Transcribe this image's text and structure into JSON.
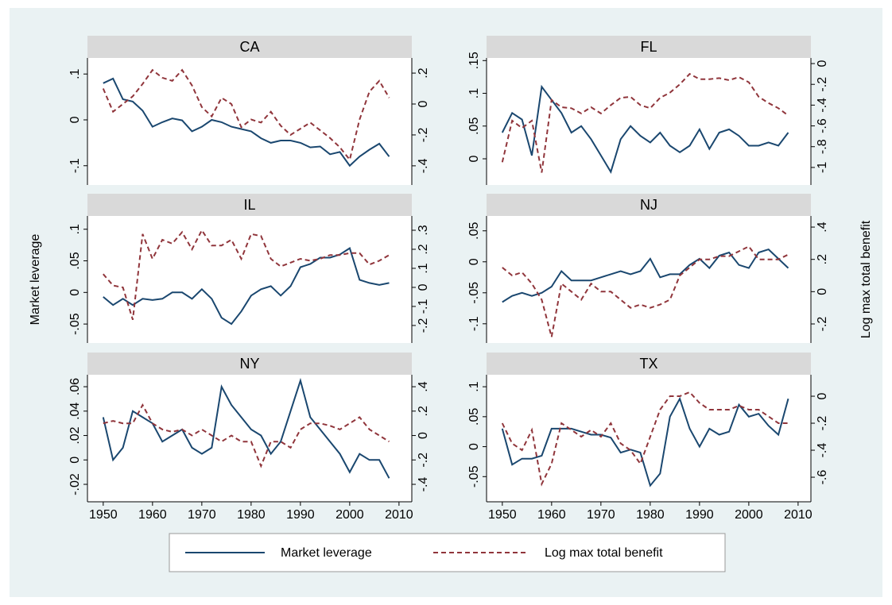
{
  "y_axis_label": "Market leverage",
  "y2_axis_label": "Log max total benefit",
  "chart_data": [
    {
      "type": "line",
      "title": "CA",
      "x": [
        1950,
        1952,
        1954,
        1956,
        1958,
        1960,
        1962,
        1964,
        1966,
        1968,
        1970,
        1972,
        1974,
        1976,
        1978,
        1980,
        1982,
        1984,
        1986,
        1988,
        1990,
        1992,
        1994,
        1996,
        1998,
        2000,
        2002,
        2004,
        2006,
        2008
      ],
      "xlim": [
        1946.8,
        2012.6
      ],
      "ylim": [
        -0.142,
        0.135
      ],
      "yticks": [
        {
          "value": -0.1,
          "label": "-.1"
        },
        0,
        {
          "value": 0.1,
          "label": ".1"
        }
      ],
      "y2lim": [
        -0.524,
        0.298
      ],
      "y2ticks": [
        {
          "value": -0.4,
          "label": "-.4"
        },
        {
          "value": -0.2,
          "label": "-.2"
        },
        0,
        {
          "value": 0.2,
          "label": ".2"
        }
      ],
      "series": [
        {
          "name": "Market leverage",
          "color": "#1a476f",
          "axis": "y",
          "values": [
            0.08,
            0.09,
            0.045,
            0.04,
            0.02,
            -0.015,
            -0.005,
            0.003,
            -0.001,
            -0.025,
            -0.015,
            0.0,
            -0.005,
            -0.015,
            -0.02,
            -0.025,
            -0.04,
            -0.05,
            -0.045,
            -0.045,
            -0.05,
            -0.06,
            -0.058,
            -0.075,
            -0.07,
            -0.1,
            -0.08,
            -0.065,
            -0.052,
            -0.08
          ]
        },
        {
          "name": "Log max total benefit",
          "color": "#90353b",
          "axis": "y2",
          "dash": true,
          "values": [
            0.1,
            -0.05,
            0.0,
            0.05,
            0.13,
            0.22,
            0.17,
            0.15,
            0.22,
            0.12,
            -0.02,
            -0.08,
            0.04,
            0.0,
            -0.15,
            -0.1,
            -0.12,
            -0.05,
            -0.14,
            -0.2,
            -0.16,
            -0.12,
            -0.17,
            -0.22,
            -0.28,
            -0.36,
            -0.1,
            0.08,
            0.15,
            0.04
          ]
        }
      ]
    },
    {
      "type": "line",
      "title": "FL",
      "x": [
        1950,
        1952,
        1954,
        1956,
        1958,
        1960,
        1962,
        1964,
        1966,
        1968,
        1970,
        1972,
        1974,
        1976,
        1978,
        1980,
        1982,
        1984,
        1986,
        1988,
        1990,
        1992,
        1994,
        1996,
        1998,
        2000,
        2002,
        2004,
        2006,
        2008
      ],
      "xlim": [
        1946.8,
        2012.6
      ],
      "ylim": [
        -0.04,
        0.154
      ],
      "yticks": [
        0,
        {
          "value": 0.05,
          "label": ".05"
        },
        {
          "value": 0.1,
          "label": ".1"
        },
        {
          "value": 0.15,
          "label": ".15"
        }
      ],
      "y2lim": [
        -1.169,
        0.054
      ],
      "y2ticks": [
        -1,
        {
          "value": -0.8,
          "label": "-.8"
        },
        {
          "value": -0.6,
          "label": "-.6"
        },
        {
          "value": -0.4,
          "label": "-.4"
        },
        {
          "value": -0.2,
          "label": "-.2"
        },
        0
      ],
      "series": [
        {
          "name": "Market leverage",
          "color": "#1a476f",
          "axis": "y",
          "values": [
            0.04,
            0.07,
            0.06,
            0.005,
            0.11,
            0.09,
            0.07,
            0.04,
            0.05,
            0.03,
            0.005,
            -0.02,
            0.03,
            0.05,
            0.035,
            0.025,
            0.04,
            0.02,
            0.01,
            0.02,
            0.045,
            0.015,
            0.04,
            0.045,
            0.035,
            0.02,
            0.02,
            0.025,
            0.02,
            0.04
          ]
        },
        {
          "name": "Log max total benefit",
          "color": "#90353b",
          "axis": "y2",
          "dash": true,
          "values": [
            -0.95,
            -0.55,
            -0.62,
            -0.55,
            -1.05,
            -0.35,
            -0.42,
            -0.43,
            -0.48,
            -0.42,
            -0.48,
            -0.4,
            -0.33,
            -0.32,
            -0.4,
            -0.43,
            -0.33,
            -0.28,
            -0.2,
            -0.1,
            -0.15,
            -0.15,
            -0.14,
            -0.16,
            -0.13,
            -0.18,
            -0.32,
            -0.38,
            -0.43,
            -0.5
          ]
        }
      ]
    },
    {
      "type": "line",
      "title": "IL",
      "x": [
        1950,
        1952,
        1954,
        1956,
        1958,
        1960,
        1962,
        1964,
        1966,
        1968,
        1970,
        1972,
        1974,
        1976,
        1978,
        1980,
        1982,
        1984,
        1986,
        1988,
        1990,
        1992,
        1994,
        1996,
        1998,
        2000,
        2002,
        2004,
        2006,
        2008
      ],
      "xlim": [
        1946.8,
        2012.6
      ],
      "ylim": [
        -0.08,
        0.121
      ],
      "yticks": [
        {
          "value": -0.05,
          "label": "-.05"
        },
        0,
        {
          "value": 0.05,
          "label": ".05"
        },
        {
          "value": 0.1,
          "label": ".1"
        }
      ],
      "y2lim": [
        -0.292,
        0.375
      ],
      "y2ticks": [
        {
          "value": -0.2,
          "label": "-.2"
        },
        {
          "value": -0.1,
          "label": "-.1"
        },
        0,
        {
          "value": 0.1,
          "label": ".1"
        },
        {
          "value": 0.2,
          "label": ".2"
        },
        {
          "value": 0.3,
          "label": ".3"
        }
      ],
      "series": [
        {
          "name": "Market leverage",
          "color": "#1a476f",
          "axis": "y",
          "values": [
            -0.007,
            -0.02,
            -0.01,
            -0.02,
            -0.01,
            -0.012,
            -0.01,
            0.0,
            0.0,
            -0.01,
            0.005,
            -0.01,
            -0.04,
            -0.05,
            -0.03,
            -0.005,
            0.005,
            0.01,
            -0.005,
            0.01,
            0.04,
            0.045,
            0.055,
            0.055,
            0.06,
            0.07,
            0.02,
            0.015,
            0.012,
            0.015
          ]
        },
        {
          "name": "Log max total benefit",
          "color": "#90353b",
          "axis": "y2",
          "dash": true,
          "values": [
            0.07,
            0.01,
            0.0,
            -0.17,
            0.28,
            0.15,
            0.25,
            0.23,
            0.29,
            0.2,
            0.3,
            0.22,
            0.22,
            0.25,
            0.15,
            0.28,
            0.27,
            0.15,
            0.11,
            0.13,
            0.15,
            0.14,
            0.15,
            0.17,
            0.17,
            0.18,
            0.18,
            0.12,
            0.14,
            0.17
          ]
        }
      ]
    },
    {
      "type": "line",
      "title": "NJ",
      "x": [
        1950,
        1952,
        1954,
        1956,
        1958,
        1960,
        1962,
        1964,
        1966,
        1968,
        1970,
        1972,
        1974,
        1976,
        1978,
        1980,
        1982,
        1984,
        1986,
        1988,
        1990,
        1992,
        1994,
        1996,
        1998,
        2000,
        2002,
        2004,
        2006,
        2008
      ],
      "xlim": [
        1946.8,
        2012.6
      ],
      "ylim": [
        -0.131,
        0.074
      ],
      "yticks": [
        {
          "value": -0.1,
          "label": "-.1"
        },
        {
          "value": -0.05,
          "label": "-.05"
        },
        0,
        {
          "value": 0.05,
          "label": ".05"
        }
      ],
      "y2lim": [
        -0.318,
        0.469
      ],
      "y2ticks": [
        {
          "value": -0.2,
          "label": "-.2"
        },
        0,
        {
          "value": 0.2,
          "label": ".2"
        },
        {
          "value": 0.4,
          "label": ".4"
        }
      ],
      "series": [
        {
          "name": "Market leverage",
          "color": "#1a476f",
          "axis": "y",
          "values": [
            -0.065,
            -0.055,
            -0.05,
            -0.055,
            -0.05,
            -0.04,
            -0.015,
            -0.03,
            -0.03,
            -0.03,
            -0.025,
            -0.02,
            -0.015,
            -0.02,
            -0.015,
            0.005,
            -0.025,
            -0.02,
            -0.02,
            -0.005,
            0.005,
            -0.01,
            0.01,
            0.015,
            -0.005,
            -0.01,
            0.015,
            0.02,
            0.005,
            -0.01
          ]
        },
        {
          "name": "Log max total benefit",
          "color": "#90353b",
          "axis": "y2",
          "dash": true,
          "values": [
            0.15,
            0.1,
            0.12,
            0.05,
            -0.05,
            -0.28,
            0.05,
            0.0,
            -0.05,
            0.05,
            0.0,
            0.0,
            -0.05,
            -0.1,
            -0.08,
            -0.1,
            -0.08,
            -0.05,
            0.1,
            0.15,
            0.2,
            0.2,
            0.22,
            0.22,
            0.25,
            0.28,
            0.2,
            0.2,
            0.2,
            0.23
          ]
        }
      ]
    },
    {
      "type": "line",
      "title": "NY",
      "x": [
        1950,
        1952,
        1954,
        1956,
        1958,
        1960,
        1962,
        1964,
        1966,
        1968,
        1970,
        1972,
        1974,
        1976,
        1978,
        1980,
        1982,
        1984,
        1986,
        1988,
        1990,
        1992,
        1994,
        1996,
        1998,
        2000,
        2002,
        2004,
        2006,
        2008
      ],
      "xlim": [
        1946.8,
        2012.6
      ],
      "xticks": [
        1950,
        1960,
        1970,
        1980,
        1990,
        2000,
        2010
      ],
      "ylim": [
        -0.0343,
        0.0698
      ],
      "yticks": [
        {
          "value": -0.02,
          "label": "-.02"
        },
        0,
        {
          "value": 0.02,
          "label": ".02"
        },
        {
          "value": 0.04,
          "label": ".04"
        },
        {
          "value": 0.06,
          "label": ".06"
        }
      ],
      "y2lim": [
        -0.543,
        0.498
      ],
      "y2ticks": [
        {
          "value": -0.4,
          "label": "-.4"
        },
        {
          "value": -0.2,
          "label": "-.2"
        },
        0,
        {
          "value": 0.2,
          "label": ".2"
        },
        {
          "value": 0.4,
          "label": ".4"
        }
      ],
      "series": [
        {
          "name": "Market leverage",
          "color": "#1a476f",
          "axis": "y",
          "values": [
            0.035,
            0.0,
            0.01,
            0.04,
            0.035,
            0.03,
            0.015,
            0.02,
            0.025,
            0.01,
            0.005,
            0.01,
            0.06,
            0.045,
            0.035,
            0.025,
            0.02,
            0.005,
            0.015,
            0.04,
            0.065,
            0.035,
            0.025,
            0.015,
            0.005,
            -0.01,
            0.005,
            0.0,
            0.0,
            -0.015
          ]
        },
        {
          "name": "Log max total benefit",
          "color": "#90353b",
          "axis": "y2",
          "dash": true,
          "values": [
            0.1,
            0.12,
            0.1,
            0.1,
            0.25,
            0.1,
            0.05,
            0.03,
            0.05,
            0.0,
            0.05,
            0.0,
            -0.05,
            0.0,
            -0.05,
            -0.05,
            -0.25,
            -0.05,
            -0.05,
            -0.1,
            0.05,
            0.1,
            0.1,
            0.08,
            0.05,
            0.1,
            0.15,
            0.05,
            0.0,
            -0.05
          ]
        }
      ]
    },
    {
      "type": "line",
      "title": "TX",
      "x": [
        1950,
        1952,
        1954,
        1956,
        1958,
        1960,
        1962,
        1964,
        1966,
        1968,
        1970,
        1972,
        1974,
        1976,
        1978,
        1980,
        1982,
        1984,
        1986,
        1988,
        1990,
        1992,
        1994,
        1996,
        1998,
        2000,
        2002,
        2004,
        2006,
        2008
      ],
      "xlim": [
        1946.8,
        2012.6
      ],
      "xticks": [
        1950,
        1960,
        1970,
        1980,
        1990,
        2000,
        2010
      ],
      "ylim": [
        -0.092,
        0.12
      ],
      "yticks": [
        {
          "value": -0.05,
          "label": "-.05"
        },
        0,
        {
          "value": 0.05,
          "label": ".05"
        },
        {
          "value": 0.1,
          "label": ".1"
        }
      ],
      "y2lim": [
        -0.782,
        0.159
      ],
      "y2ticks": [
        {
          "value": -0.6,
          "label": "-.6"
        },
        {
          "value": -0.4,
          "label": "-.4"
        },
        {
          "value": -0.2,
          "label": "-.2"
        },
        0
      ],
      "series": [
        {
          "name": "Market leverage",
          "color": "#1a476f",
          "axis": "y",
          "values": [
            0.03,
            -0.03,
            -0.02,
            -0.02,
            -0.015,
            0.03,
            0.03,
            0.03,
            0.025,
            0.02,
            0.02,
            0.015,
            -0.01,
            -0.005,
            -0.01,
            -0.065,
            -0.045,
            0.05,
            0.08,
            0.03,
            0.0,
            0.03,
            0.02,
            0.025,
            0.07,
            0.05,
            0.055,
            0.035,
            0.02,
            0.08
          ]
        },
        {
          "name": "Log max total benefit",
          "color": "#90353b",
          "axis": "y2",
          "dash": true,
          "values": [
            -0.2,
            -0.35,
            -0.4,
            -0.25,
            -0.65,
            -0.5,
            -0.2,
            -0.25,
            -0.3,
            -0.25,
            -0.3,
            -0.2,
            -0.35,
            -0.4,
            -0.5,
            -0.3,
            -0.1,
            0.0,
            0.0,
            0.03,
            -0.05,
            -0.1,
            -0.1,
            -0.1,
            -0.07,
            -0.1,
            -0.1,
            -0.15,
            -0.2,
            -0.2
          ]
        }
      ]
    }
  ]
}
